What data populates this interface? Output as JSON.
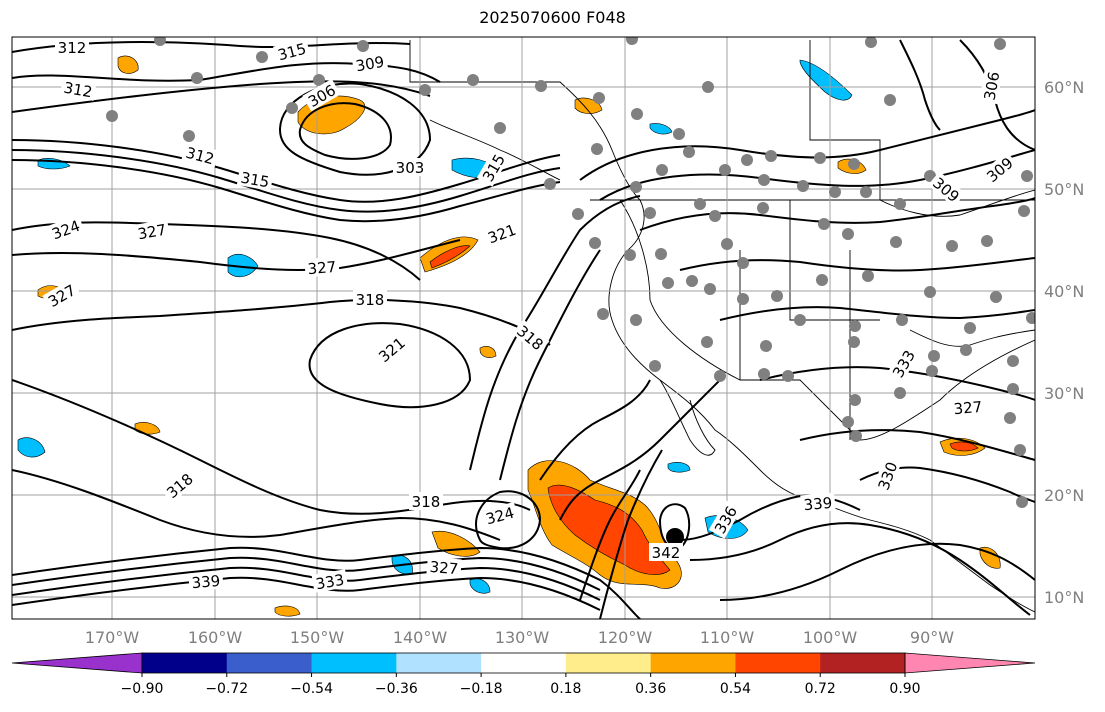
{
  "title": "2025070600 F048",
  "lon_labels": [
    "170°W",
    "160°W",
    "150°W",
    "140°W",
    "130°W",
    "120°W",
    "110°W",
    "100°W",
    "90°W"
  ],
  "lat_labels": [
    "60°N",
    "50°N",
    "40°N",
    "30°N",
    "20°N",
    "10°N"
  ],
  "colorbar": {
    "ticks": [
      "−0.90",
      "−0.72",
      "−0.54",
      "−0.36",
      "−0.18",
      "0.18",
      "0.36",
      "0.54",
      "0.72",
      "0.90"
    ],
    "colors": [
      "#9932cc",
      "#00008b",
      "#3a5fcd",
      "#00bfff",
      "#b0e2ff",
      "#ffffff",
      "#ffec8b",
      "#ffa500",
      "#ff4500",
      "#b22222",
      "#ff86b0"
    ]
  },
  "contour_labels": [
    "312",
    "315",
    "309",
    "312",
    "306",
    "303",
    "315",
    "312",
    "321",
    "327",
    "327",
    "324",
    "318",
    "321",
    "318",
    "327",
    "318",
    "324",
    "339",
    "327",
    "333",
    "342",
    "336",
    "339",
    "330",
    "327",
    "333",
    "318",
    "306",
    "309",
    "309",
    "315"
  ]
}
